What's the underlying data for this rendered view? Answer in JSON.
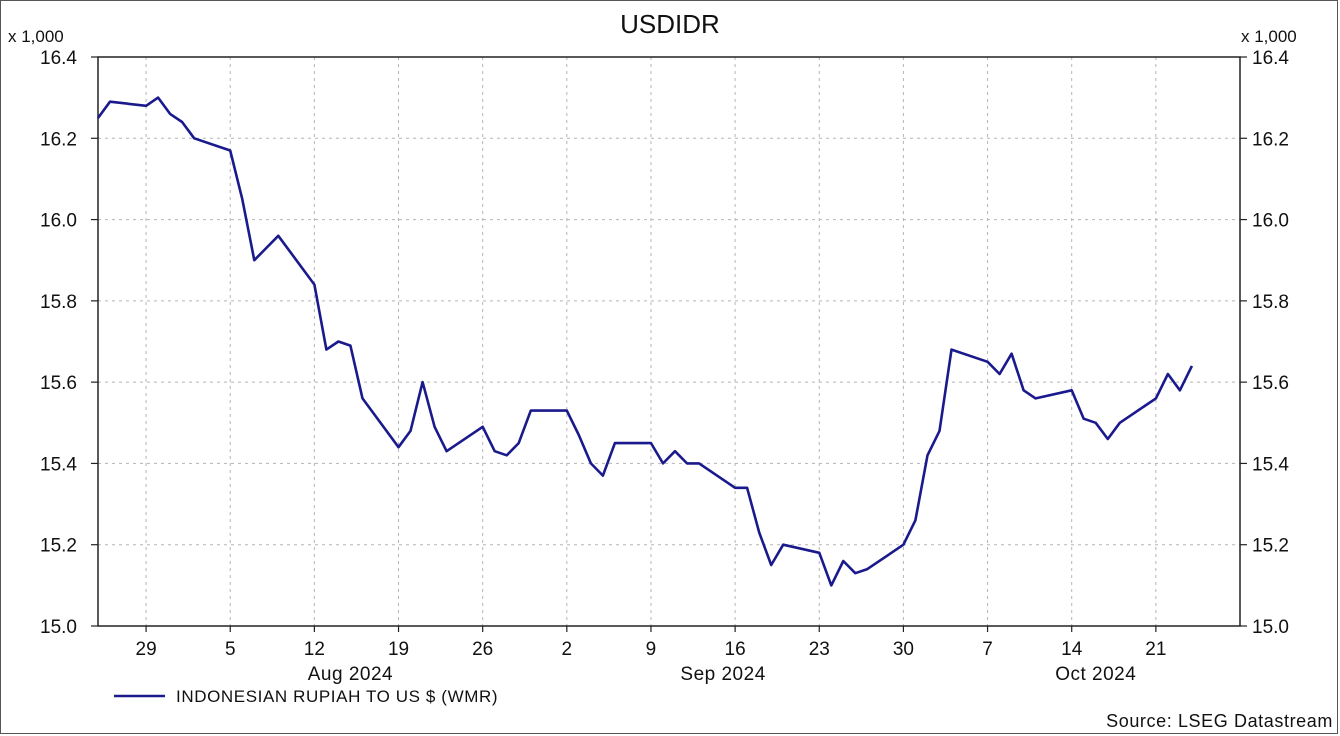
{
  "chart_data": {
    "type": "line",
    "title": "USDIDR",
    "y_multiplier_left": "x 1,000",
    "y_multiplier_right": "x 1,000",
    "ylim": [
      15.0,
      16.4
    ],
    "yticks": [
      "15.0",
      "15.2",
      "15.4",
      "15.6",
      "15.8",
      "16.0",
      "16.2",
      "16.4"
    ],
    "grid": true,
    "x_day_ticks": [
      {
        "label": "29",
        "date": "2024-07-29"
      },
      {
        "label": "5",
        "date": "2024-08-05"
      },
      {
        "label": "12",
        "date": "2024-08-12"
      },
      {
        "label": "19",
        "date": "2024-08-19"
      },
      {
        "label": "26",
        "date": "2024-08-26"
      },
      {
        "label": "2",
        "date": "2024-09-02"
      },
      {
        "label": "9",
        "date": "2024-09-09"
      },
      {
        "label": "16",
        "date": "2024-09-16"
      },
      {
        "label": "23",
        "date": "2024-09-23"
      },
      {
        "label": "30",
        "date": "2024-09-30"
      },
      {
        "label": "7",
        "date": "2024-10-07"
      },
      {
        "label": "14",
        "date": "2024-10-14"
      },
      {
        "label": "21",
        "date": "2024-10-21"
      }
    ],
    "x_month_labels": [
      {
        "label": "Aug 2024",
        "date": "2024-08-15"
      },
      {
        "label": "Sep 2024",
        "date": "2024-09-15"
      },
      {
        "label": "Oct 2024",
        "date": "2024-10-16"
      }
    ],
    "xlim": [
      "2024-07-25",
      "2024-10-28"
    ],
    "series": [
      {
        "name": "INDONESIAN RUPIAH TO US $ (WMR)",
        "color": "#1a1a8c",
        "points": [
          [
            "2024-07-25",
            16.25
          ],
          [
            "2024-07-26",
            16.29
          ],
          [
            "2024-07-29",
            16.28
          ],
          [
            "2024-07-30",
            16.3
          ],
          [
            "2024-07-31",
            16.26
          ],
          [
            "2024-08-01",
            16.24
          ],
          [
            "2024-08-02",
            16.2
          ],
          [
            "2024-08-05",
            16.17
          ],
          [
            "2024-08-06",
            16.05
          ],
          [
            "2024-08-07",
            15.9
          ],
          [
            "2024-08-08",
            15.93
          ],
          [
            "2024-08-09",
            15.96
          ],
          [
            "2024-08-12",
            15.84
          ],
          [
            "2024-08-13",
            15.68
          ],
          [
            "2024-08-14",
            15.7
          ],
          [
            "2024-08-15",
            15.69
          ],
          [
            "2024-08-16",
            15.56
          ],
          [
            "2024-08-19",
            15.44
          ],
          [
            "2024-08-20",
            15.48
          ],
          [
            "2024-08-21",
            15.6
          ],
          [
            "2024-08-22",
            15.49
          ],
          [
            "2024-08-23",
            15.43
          ],
          [
            "2024-08-26",
            15.49
          ],
          [
            "2024-08-27",
            15.43
          ],
          [
            "2024-08-28",
            15.42
          ],
          [
            "2024-08-29",
            15.45
          ],
          [
            "2024-08-30",
            15.53
          ],
          [
            "2024-09-02",
            15.53
          ],
          [
            "2024-09-03",
            15.47
          ],
          [
            "2024-09-04",
            15.4
          ],
          [
            "2024-09-05",
            15.37
          ],
          [
            "2024-09-06",
            15.45
          ],
          [
            "2024-09-09",
            15.45
          ],
          [
            "2024-09-10",
            15.4
          ],
          [
            "2024-09-11",
            15.43
          ],
          [
            "2024-09-12",
            15.4
          ],
          [
            "2024-09-13",
            15.4
          ],
          [
            "2024-09-16",
            15.34
          ],
          [
            "2024-09-17",
            15.34
          ],
          [
            "2024-09-18",
            15.23
          ],
          [
            "2024-09-19",
            15.15
          ],
          [
            "2024-09-20",
            15.2
          ],
          [
            "2024-09-23",
            15.18
          ],
          [
            "2024-09-24",
            15.1
          ],
          [
            "2024-09-25",
            15.16
          ],
          [
            "2024-09-26",
            15.13
          ],
          [
            "2024-09-27",
            15.14
          ],
          [
            "2024-09-30",
            15.2
          ],
          [
            "2024-10-01",
            15.26
          ],
          [
            "2024-10-02",
            15.42
          ],
          [
            "2024-10-03",
            15.48
          ],
          [
            "2024-10-04",
            15.68
          ],
          [
            "2024-10-07",
            15.65
          ],
          [
            "2024-10-08",
            15.62
          ],
          [
            "2024-10-09",
            15.67
          ],
          [
            "2024-10-10",
            15.58
          ],
          [
            "2024-10-11",
            15.56
          ],
          [
            "2024-10-14",
            15.58
          ],
          [
            "2024-10-15",
            15.51
          ],
          [
            "2024-10-16",
            15.5
          ],
          [
            "2024-10-17",
            15.46
          ],
          [
            "2024-10-18",
            15.5
          ],
          [
            "2024-10-21",
            15.56
          ],
          [
            "2024-10-22",
            15.62
          ],
          [
            "2024-10-23",
            15.58
          ],
          [
            "2024-10-24",
            15.64
          ]
        ]
      }
    ],
    "legend_placement": "bottom-left",
    "source": "Source: LSEG Datastream"
  }
}
